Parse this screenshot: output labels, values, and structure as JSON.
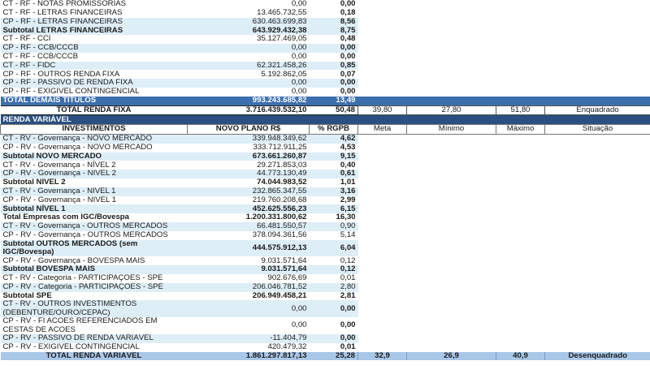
{
  "rf_rows": [
    {
      "label": "CT - RF - NOTAS PROMISSORIAS",
      "value": "0,00",
      "pct": "0,00",
      "bold": false,
      "alt": false
    },
    {
      "label": "CT - RF - LETRAS FINANCEIRAS",
      "value": "13.465.732,55",
      "pct": "0,18",
      "bold": false,
      "alt": false
    },
    {
      "label": "CP - RF - LETRAS FINANCEIRAS",
      "value": "630.463.699,83",
      "pct": "8,56",
      "bold": false,
      "alt": true
    },
    {
      "label": "Subtotal LETRAS FINANCEIRAS",
      "value": "643.929.432,38",
      "pct": "8,75",
      "bold": true,
      "alt": true
    },
    {
      "label": "CT - RF - CCI",
      "value": "35.127.469,05",
      "pct": "0,48",
      "bold": false,
      "alt": false
    },
    {
      "label": "CP - RF - CCB/CCCB",
      "value": "0,00",
      "pct": "0,00",
      "bold": false,
      "alt": true
    },
    {
      "label": "CT - RF - CCB/CCCB",
      "value": "0,00",
      "pct": "0,00",
      "bold": false,
      "alt": false
    },
    {
      "label": "CT - RF - FIDC",
      "value": "62.321.458,26",
      "pct": "0,85",
      "bold": false,
      "alt": true
    },
    {
      "label": "CP - RF - OUTROS RENDA FIXA",
      "value": "5.192.862,05",
      "pct": "0,07",
      "bold": false,
      "alt": false
    },
    {
      "label": "CP - RF - PASSIVO DE RENDA FIXA",
      "value": "0,00",
      "pct": "0,00",
      "bold": false,
      "alt": true
    },
    {
      "label": "CP - RF - EXIGIVEL CONTINGENCIAL",
      "value": "0,00",
      "pct": "0,00",
      "bold": false,
      "alt": false
    }
  ],
  "total_demais": {
    "label": "TOTAL DEMAIS TÍTULOS",
    "value": "993.243.685,82",
    "pct": "13,49"
  },
  "total_rf": {
    "label": "TOTAL RENDA FIXA",
    "value": "3.716.439.532,10",
    "pct": "50,48",
    "meta": "39,80",
    "minimo": "27,80",
    "maximo": "51,80",
    "situacao": "Enquadrado"
  },
  "section_title": "RENDA VARIÁVEL",
  "headers": {
    "investimentos": "INVESTIMENTOS",
    "novo_plano": "NOVO PLANO R$",
    "pct_rgpb": "% RGPB",
    "meta": "Meta",
    "minimo": "Mínimo",
    "maximo": "Máximo",
    "situacao": "Situação"
  },
  "rv_rows": [
    {
      "label": "CT - RV - Governança - NOVO MERCADO",
      "value": "339.948.349,62",
      "pct": "4,62",
      "bold": false,
      "alt": true,
      "pb": true
    },
    {
      "label": "CP - RV - Governança - NOVO MERCADO",
      "value": "333.712.911,25",
      "pct": "4,53",
      "bold": false,
      "alt": false,
      "pb": true
    },
    {
      "label": "Subtotal NOVO MERCADO",
      "value": "673.661.260,87",
      "pct": "9,15",
      "bold": true,
      "alt": true,
      "pb": true
    },
    {
      "label": "CT - RV - Governança - NÍVEL 2",
      "value": "29.271.853,03",
      "pct": "0,40",
      "bold": false,
      "alt": false,
      "pb": true
    },
    {
      "label": "CP - RV - Governança - NÍVEL 2",
      "value": "44.773.130,49",
      "pct": "0,61",
      "bold": false,
      "alt": true,
      "pb": true
    },
    {
      "label": "Subtotal NÍVEL 2",
      "value": "74.044.983,52",
      "pct": "1,01",
      "bold": true,
      "alt": false,
      "pb": true
    },
    {
      "label": "CT - RV - Governança - NÍVEL 1",
      "value": "232.865.347,55",
      "pct": "3,16",
      "bold": false,
      "alt": true,
      "pb": true
    },
    {
      "label": "CP - RV - Governança - NÍVEL 1",
      "value": "219.760.208,68",
      "pct": "2,99",
      "bold": false,
      "alt": false,
      "pb": true
    },
    {
      "label": "Subtotal NÍVEL 1",
      "value": "452.625.556,23",
      "pct": "6,15",
      "bold": true,
      "alt": true,
      "pb": true
    },
    {
      "label": "Total Empresas com IGC/Bovespa",
      "value": "1.200.331.800,62",
      "pct": "16,30",
      "bold": true,
      "alt": false,
      "pb": true
    },
    {
      "label": "CT - RV - Governança - OUTROS MERCADOS",
      "value": "66.481.550,57",
      "pct": "0,90",
      "bold": false,
      "alt": true,
      "pb": false
    },
    {
      "label": "CP - RV - Governança - OUTROS MERCADOS",
      "value": "378.094.361,56",
      "pct": "5,14",
      "bold": false,
      "alt": false,
      "pb": false
    },
    {
      "label": "Subtotal OUTROS MERCADOS (sem IGC/Bovespa)",
      "value": "444.575.912,13",
      "pct": "6,04",
      "bold": true,
      "alt": true,
      "pb": true,
      "wrap": true
    },
    {
      "label": "CP - RV - Governança - BOVESPA MAIS",
      "value": "9.031.571,64",
      "pct": "0,12",
      "bold": false,
      "alt": false,
      "pb": false
    },
    {
      "label": "Subtotal BOVESPA MAIS",
      "value": "9.031.571,64",
      "pct": "0,12",
      "bold": true,
      "alt": true,
      "pb": true
    },
    {
      "label": "CT - RV - Categoria - PARTICIPAÇÕES - SPE",
      "value": "902.676,69",
      "pct": "0,01",
      "bold": false,
      "alt": false,
      "pb": false
    },
    {
      "label": "CP - RV - Categoria - PARTICIPAÇÕES - SPE",
      "value": "206.046.781,52",
      "pct": "2,80",
      "bold": false,
      "alt": true,
      "pb": false
    },
    {
      "label": "Subtotal SPE",
      "value": "206.949.458,21",
      "pct": "2,81",
      "bold": true,
      "alt": false,
      "pb": true
    },
    {
      "label": "CT - RV - OUTROS INVESTIMENTOS (DEBENTURE/OURO/CEPAC)",
      "value": "0,00",
      "pct": "0,00",
      "bold": false,
      "alt": true,
      "pb": true,
      "wrap": true
    },
    {
      "label": "CP - RV - FI ACOES REFERENCIADOS EM CESTAS DE ACOES",
      "value": "0,00",
      "pct": "0,00",
      "bold": false,
      "alt": false,
      "pb": true,
      "wrap": true
    },
    {
      "label": "CP - RV - PASSIVO DE RENDA VARIÁVEL",
      "value": "-11.404,79",
      "pct": "0,00",
      "bold": false,
      "alt": true,
      "pb": true
    },
    {
      "label": "CP - RV - EXIGIVEL CONTINGENCIAL",
      "value": "420.479,32",
      "pct": "0,01",
      "bold": false,
      "alt": false,
      "pb": true
    }
  ],
  "total_rv": {
    "label": "TOTAL RENDA VARIÁVEL",
    "value": "1.861.297.817,13",
    "pct": "25,28",
    "meta": "32,9",
    "minimo": "26,9",
    "maximo": "40,9",
    "situacao": "Desenquadrado"
  }
}
